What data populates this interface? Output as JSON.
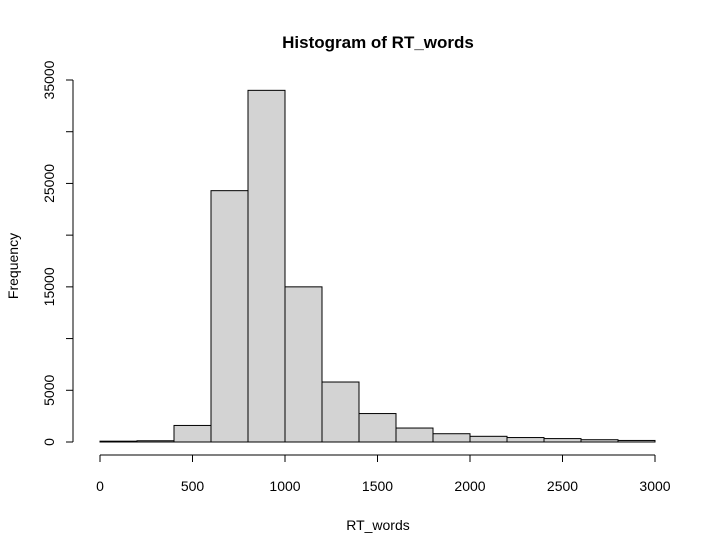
{
  "chart_data": {
    "type": "bar",
    "title": "Histogram of RT_words",
    "xlabel": "RT_words",
    "ylabel": "Frequency",
    "xlim": [
      0,
      3000
    ],
    "ylim": [
      0,
      35000
    ],
    "x_ticks": [
      "0",
      "500",
      "1000",
      "1500",
      "2000",
      "2500",
      "3000"
    ],
    "y_ticks": [
      "0",
      "5000",
      "15000",
      "25000",
      "35000"
    ],
    "bin_width": 200,
    "bins": [
      {
        "start": 0,
        "end": 200,
        "count": 80
      },
      {
        "start": 200,
        "end": 400,
        "count": 120
      },
      {
        "start": 400,
        "end": 600,
        "count": 1600
      },
      {
        "start": 600,
        "end": 800,
        "count": 24300
      },
      {
        "start": 800,
        "end": 1000,
        "count": 34000
      },
      {
        "start": 1000,
        "end": 1200,
        "count": 15000
      },
      {
        "start": 1200,
        "end": 1400,
        "count": 5800
      },
      {
        "start": 1400,
        "end": 1600,
        "count": 2750
      },
      {
        "start": 1600,
        "end": 1800,
        "count": 1350
      },
      {
        "start": 1800,
        "end": 2000,
        "count": 800
      },
      {
        "start": 2000,
        "end": 2200,
        "count": 550
      },
      {
        "start": 2200,
        "end": 2400,
        "count": 430
      },
      {
        "start": 2400,
        "end": 2600,
        "count": 330
      },
      {
        "start": 2600,
        "end": 2800,
        "count": 220
      },
      {
        "start": 2800,
        "end": 3000,
        "count": 150
      }
    ],
    "bar_color": "#d3d3d3",
    "border_color": "#000000",
    "grid": false,
    "legend": "none"
  }
}
